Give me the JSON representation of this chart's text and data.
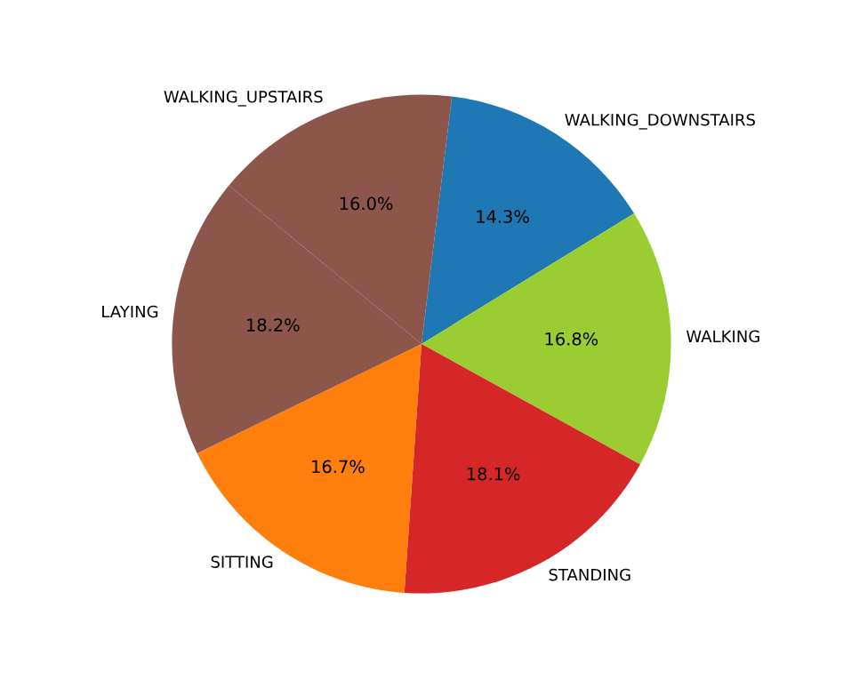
{
  "chart_data": {
    "type": "pie",
    "categories": [
      "WALKING_DOWNSTAIRS",
      "WALKING",
      "STANDING",
      "SITTING",
      "LAYING",
      "WALKING_UPSTAIRS"
    ],
    "values": [
      14.3,
      16.8,
      18.1,
      16.7,
      18.2,
      16.0
    ],
    "colors": [
      "#1f77b4",
      "#9acd32",
      "#d62728",
      "#ff7f0e",
      "#8c564b",
      "#8c564b"
    ],
    "value_labels": [
      "14.3%",
      "16.8%",
      "18.1%",
      "16.7%",
      "18.2%",
      "16.0%"
    ],
    "legend": false
  }
}
